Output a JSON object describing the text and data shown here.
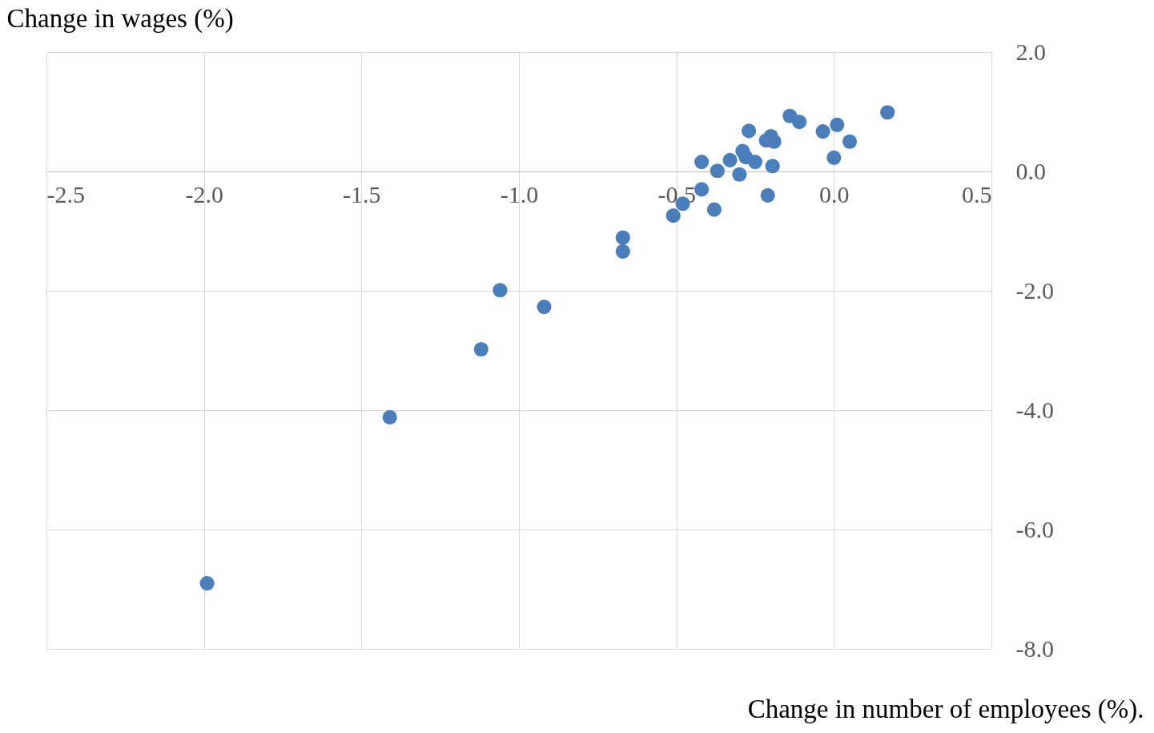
{
  "chart_data": {
    "type": "scatter",
    "xlabel": "Change in number of employees (%).",
    "ylabel": "Change in wages (%)",
    "x": [
      0.17,
      -0.14,
      -0.11,
      0.01,
      -0.035,
      -0.27,
      -0.2,
      -0.215,
      -0.19,
      0.05,
      -0.29,
      -0.28,
      -0.33,
      -0.25,
      -0.42,
      0.0,
      -0.195,
      -0.37,
      -0.3,
      -0.42,
      -0.21,
      -0.48,
      -0.38,
      -0.51,
      -0.67,
      -0.67,
      -1.06,
      -0.92,
      -1.12,
      -1.41,
      -1.99
    ],
    "series": [
      {
        "color": "#4a7ebb",
        "values": [
          0.99,
          0.93,
          0.83,
          0.78,
          0.67,
          0.68,
          0.59,
          0.52,
          0.5,
          0.5,
          0.34,
          0.24,
          0.19,
          0.16,
          0.16,
          0.23,
          0.09,
          0.01,
          -0.05,
          -0.3,
          -0.4,
          -0.54,
          -0.64,
          -0.74,
          -1.11,
          -1.34,
          -1.99,
          -2.27,
          -2.98,
          -4.12,
          -6.9
        ]
      }
    ],
    "xlim": [
      -2.5,
      0.5
    ],
    "xticks": [
      {
        "value": -2.5,
        "label": "-2.5"
      },
      {
        "value": -2.0,
        "label": "-2.0"
      },
      {
        "value": -1.5,
        "label": "-1.5"
      },
      {
        "value": -1.0,
        "label": "-1.0"
      },
      {
        "value": -0.5,
        "label": "-0.5"
      },
      {
        "value": 0.0,
        "label": "0.0"
      },
      {
        "value": 0.5,
        "label": "0.5"
      }
    ],
    "ylim": [
      -8.0,
      2.0
    ],
    "yticks": [
      {
        "value": -8.0,
        "label": "-8.0"
      },
      {
        "value": -6.0,
        "label": "-6.0"
      },
      {
        "value": -4.0,
        "label": "-4.0"
      },
      {
        "value": -2.0,
        "label": "-2.0"
      },
      {
        "value": 0.0,
        "label": "0.0"
      },
      {
        "value": 2.0,
        "label": "2.0"
      }
    ],
    "grid": true,
    "marker": "circle"
  }
}
